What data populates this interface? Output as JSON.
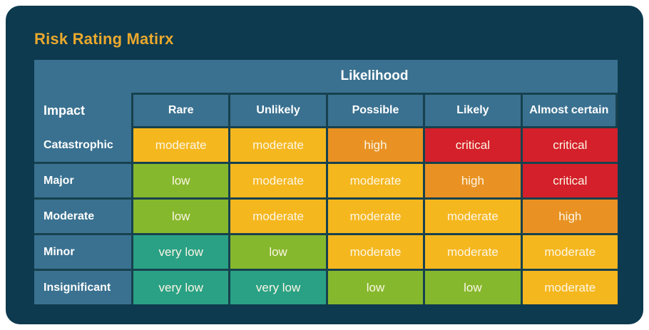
{
  "title": "Risk Rating Matirx",
  "colors": {
    "page_background": "#ffffff",
    "card_background": "#0d3a4e",
    "panel_blue": "#3a7190",
    "gridline": "#17414e",
    "title_text": "#eaa82d",
    "header_text": "#ffffff",
    "cell_text": "#fcf6e5",
    "levels": {
      "very low": "#2aa185",
      "low": "#86b82d",
      "moderate": "#f5b71e",
      "high": "#e99223",
      "critical": "#d4202a"
    }
  },
  "chart_data": {
    "type": "heatmap",
    "title": "Risk Rating Matirx",
    "column_group_label": "Likelihood",
    "row_group_label": "Impact",
    "columns": [
      "Rare",
      "Unlikely",
      "Possible",
      "Likely",
      "Almost certain"
    ],
    "rows": [
      "Catastrophic",
      "Major",
      "Moderate",
      "Minor",
      "Insignificant"
    ],
    "values": [
      [
        "moderate",
        "moderate",
        "high",
        "critical",
        "critical"
      ],
      [
        "low",
        "moderate",
        "moderate",
        "high",
        "critical"
      ],
      [
        "low",
        "moderate",
        "moderate",
        "moderate",
        "high"
      ],
      [
        "very low",
        "low",
        "moderate",
        "moderate",
        "moderate"
      ],
      [
        "very low",
        "very low",
        "low",
        "low",
        "moderate"
      ]
    ],
    "legend": "none",
    "layout": {
      "header_merged_cells": [
        "Likelihood spans all 5 likelihood columns",
        "Impact spans both header rows"
      ],
      "grid": "on"
    }
  }
}
